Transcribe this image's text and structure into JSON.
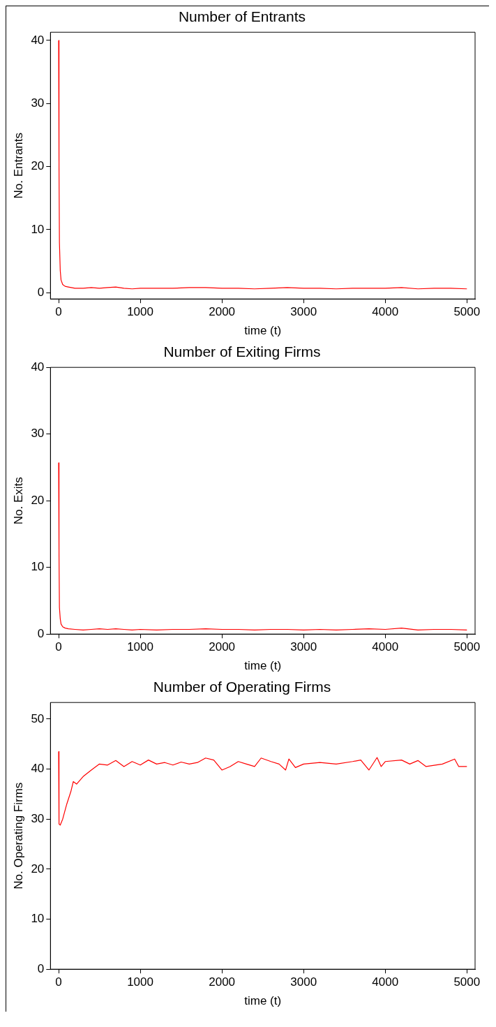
{
  "chart_data": [
    {
      "type": "line",
      "title": "Number of Entrants",
      "xlabel": "time (t)",
      "ylabel": "No. Entrants",
      "xlim": [
        -100,
        5100
      ],
      "ylim": [
        -1,
        41.3
      ],
      "xticks": [
        0,
        1000,
        2000,
        3000,
        4000,
        5000
      ],
      "yticks": [
        0,
        10,
        20,
        30,
        40
      ],
      "x": [
        0,
        5,
        10,
        20,
        30,
        50,
        80,
        120,
        200,
        300,
        400,
        500,
        600,
        700,
        800,
        900,
        1000,
        1200,
        1400,
        1600,
        1800,
        2000,
        2200,
        2400,
        2600,
        2800,
        3000,
        3200,
        3400,
        3600,
        3800,
        4000,
        4200,
        4400,
        4600,
        4800,
        5000
      ],
      "series": [
        {
          "color": "#ff0000",
          "values": [
            40,
            20,
            8,
            3.5,
            2,
            1.3,
            1,
            0.9,
            0.7,
            0.7,
            0.8,
            0.7,
            0.8,
            0.9,
            0.7,
            0.6,
            0.7,
            0.7,
            0.7,
            0.8,
            0.8,
            0.7,
            0.7,
            0.6,
            0.7,
            0.8,
            0.7,
            0.7,
            0.6,
            0.7,
            0.7,
            0.7,
            0.8,
            0.6,
            0.7,
            0.7,
            0.6
          ]
        }
      ]
    },
    {
      "type": "line",
      "title": "Number of Exiting Firms",
      "xlabel": "time (t)",
      "ylabel": "No. Exits",
      "xlim": [
        -100,
        5100
      ],
      "ylim": [
        0,
        40
      ],
      "xticks": [
        0,
        1000,
        2000,
        3000,
        4000,
        5000
      ],
      "yticks": [
        0,
        10,
        20,
        30,
        40
      ],
      "x": [
        0,
        5,
        10,
        20,
        30,
        50,
        80,
        120,
        200,
        300,
        400,
        500,
        600,
        700,
        800,
        900,
        1000,
        1200,
        1400,
        1600,
        1800,
        2000,
        2200,
        2400,
        2600,
        2800,
        3000,
        3200,
        3400,
        3600,
        3800,
        4000,
        4200,
        4400,
        4600,
        4800,
        5000
      ],
      "series": [
        {
          "color": "#ff0000",
          "values": [
            25.7,
            12,
            4,
            2.3,
            1.5,
            1.1,
            0.9,
            0.8,
            0.7,
            0.6,
            0.7,
            0.8,
            0.7,
            0.8,
            0.7,
            0.6,
            0.7,
            0.6,
            0.7,
            0.7,
            0.8,
            0.7,
            0.7,
            0.6,
            0.7,
            0.7,
            0.6,
            0.7,
            0.6,
            0.7,
            0.8,
            0.7,
            0.9,
            0.6,
            0.7,
            0.7,
            0.6
          ]
        }
      ]
    },
    {
      "type": "line",
      "title": "Number of Operating Firms",
      "xlabel": "time (t)",
      "ylabel": "No. Operating Firms",
      "xlim": [
        -100,
        5100
      ],
      "ylim": [
        0,
        53.3
      ],
      "xticks": [
        0,
        1000,
        2000,
        3000,
        4000,
        5000
      ],
      "yticks": [
        0,
        10,
        20,
        30,
        40,
        50
      ],
      "x": [
        0,
        5,
        20,
        50,
        100,
        150,
        180,
        220,
        300,
        400,
        500,
        600,
        700,
        800,
        900,
        1000,
        1100,
        1200,
        1300,
        1400,
        1500,
        1600,
        1700,
        1800,
        1900,
        2000,
        2100,
        2200,
        2300,
        2400,
        2480,
        2600,
        2700,
        2780,
        2820,
        2900,
        3000,
        3200,
        3400,
        3600,
        3700,
        3800,
        3900,
        3950,
        4000,
        4200,
        4300,
        4400,
        4500,
        4700,
        4850,
        4900,
        5000
      ],
      "series": [
        {
          "color": "#ff0000",
          "values": [
            43.5,
            29,
            28.8,
            30,
            33,
            35.5,
            37.5,
            37,
            38.5,
            39.8,
            41,
            40.8,
            41.7,
            40.5,
            41.5,
            40.8,
            41.8,
            41,
            41.3,
            40.8,
            41.4,
            41,
            41.3,
            42.2,
            41.8,
            39.8,
            40.5,
            41.5,
            41,
            40.5,
            42.2,
            41.5,
            41,
            39.8,
            42,
            40.3,
            41,
            41.3,
            41,
            41.5,
            41.8,
            39.8,
            42.3,
            40.5,
            41.5,
            41.8,
            41,
            41.7,
            40.5,
            41,
            42,
            40.5,
            40.5
          ]
        }
      ]
    }
  ]
}
